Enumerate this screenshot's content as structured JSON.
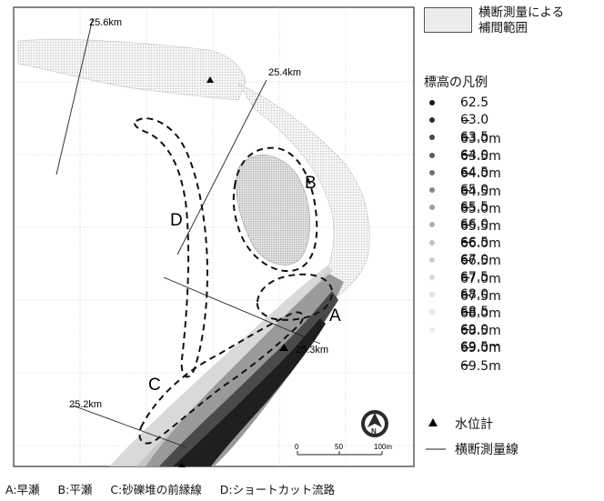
{
  "map_labels": {
    "km_25_6": "25.6km",
    "km_25_4": "25.4km",
    "km_25_3": "25.3km",
    "km_25_2": "25.2km",
    "zone_a": "A",
    "zone_b": "B",
    "zone_c": "C",
    "zone_d": "D",
    "scale_0": "0",
    "scale_50": "50",
    "scale_100": "100m"
  },
  "legend": {
    "range_label_line1": "横断測量による",
    "range_label_line2": "補間範囲",
    "title": "標高の凡例",
    "elevation_classes": [
      {
        "label": "62.5 − 63.0m",
        "color": "#1a1a1a"
      },
      {
        "label": "63.0 − 63.5m",
        "color": "#2e2e2e"
      },
      {
        "label": "63.5 − 64.0m",
        "color": "#444444"
      },
      {
        "label": "64.0 − 64.5m",
        "color": "#5c5c5c"
      },
      {
        "label": "64.5 − 65.0m",
        "color": "#727272"
      },
      {
        "label": "65.0 − 65.5m",
        "color": "#888888"
      },
      {
        "label": "65.5 − 66.0m",
        "color": "#9d9d9d"
      },
      {
        "label": "66.0 − 66.5m",
        "color": "#b0b0b0"
      },
      {
        "label": "66.5 − 67.0m",
        "color": "#c0c0c0"
      },
      {
        "label": "67.0 − 67.5m",
        "color": "#cdcdcd"
      },
      {
        "label": "67.5 − 68.0m",
        "color": "#d8d8d8"
      },
      {
        "label": "68.0 − 68.5m",
        "color": "#e1e1e1"
      },
      {
        "label": "68.5 − 69.0m",
        "color": "#e8e8e8"
      },
      {
        "label": "69.0 − 69.5m",
        "color": "#eeeeee"
      },
      {
        "label": "69.5m −",
        "color": "#ffffff"
      }
    ],
    "gauge_label": "水位計",
    "survey_line_label": "横断測量線"
  },
  "footnote": {
    "a": "A:早瀬",
    "b": "B:平瀬",
    "c": "C:砂礫堆の前縁線",
    "d": "D:ショートカット流路"
  }
}
